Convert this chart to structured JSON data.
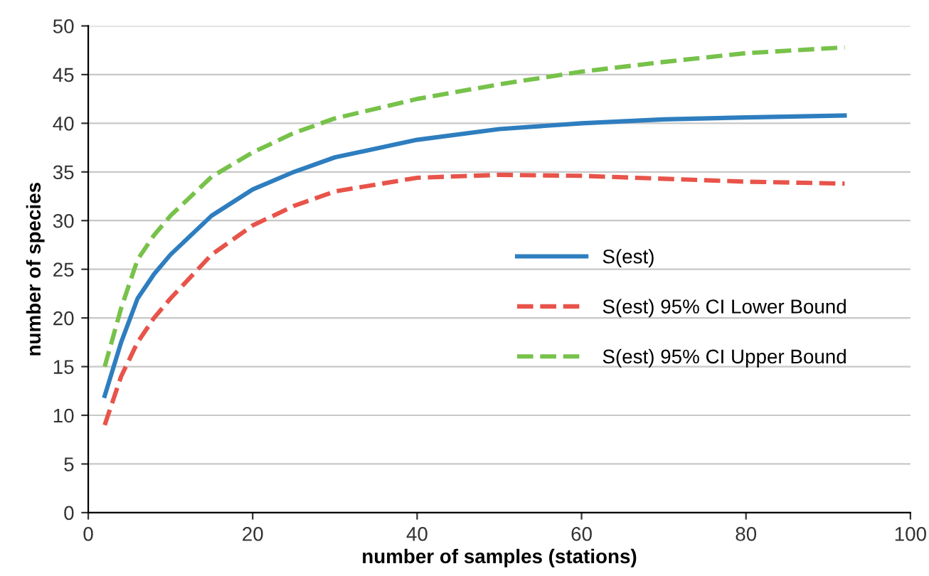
{
  "chart_data": {
    "type": "line",
    "xlabel": "number of samples (stations)",
    "ylabel": "number of species",
    "x": [
      2,
      4,
      6,
      8,
      10,
      15,
      20,
      25,
      30,
      40,
      50,
      60,
      70,
      80,
      92
    ],
    "series": [
      {
        "name": "S(est)",
        "color": "#2e7ebf",
        "line_style": "solid",
        "values": [
          12,
          17.5,
          22,
          24.5,
          26.5,
          30.5,
          33.2,
          35,
          36.5,
          38.3,
          39.4,
          40,
          40.4,
          40.6,
          40.8
        ]
      },
      {
        "name": "S(est) 95% CI Lower Bound",
        "color": "#e8534a",
        "line_style": "dashed",
        "values": [
          9,
          14,
          17.5,
          20,
          22,
          26.5,
          29.5,
          31.5,
          33,
          34.4,
          34.7,
          34.6,
          34.3,
          34,
          33.8
        ]
      },
      {
        "name": "S(est) 95% CI Upper Bound",
        "color": "#77c24a",
        "line_style": "dashed",
        "values": [
          15,
          21,
          26,
          28.5,
          30.5,
          34.5,
          37,
          39,
          40.5,
          42.5,
          44,
          45.3,
          46.3,
          47.2,
          47.8
        ]
      }
    ],
    "xlim": [
      0,
      100
    ],
    "xticks": [
      0,
      20,
      40,
      60,
      80,
      100
    ],
    "ylim": [
      0,
      50
    ],
    "yticks": [
      0,
      5,
      10,
      15,
      20,
      25,
      30,
      35,
      40,
      45,
      50
    ],
    "grid": "y",
    "legend": "right",
    "marker": "none"
  }
}
